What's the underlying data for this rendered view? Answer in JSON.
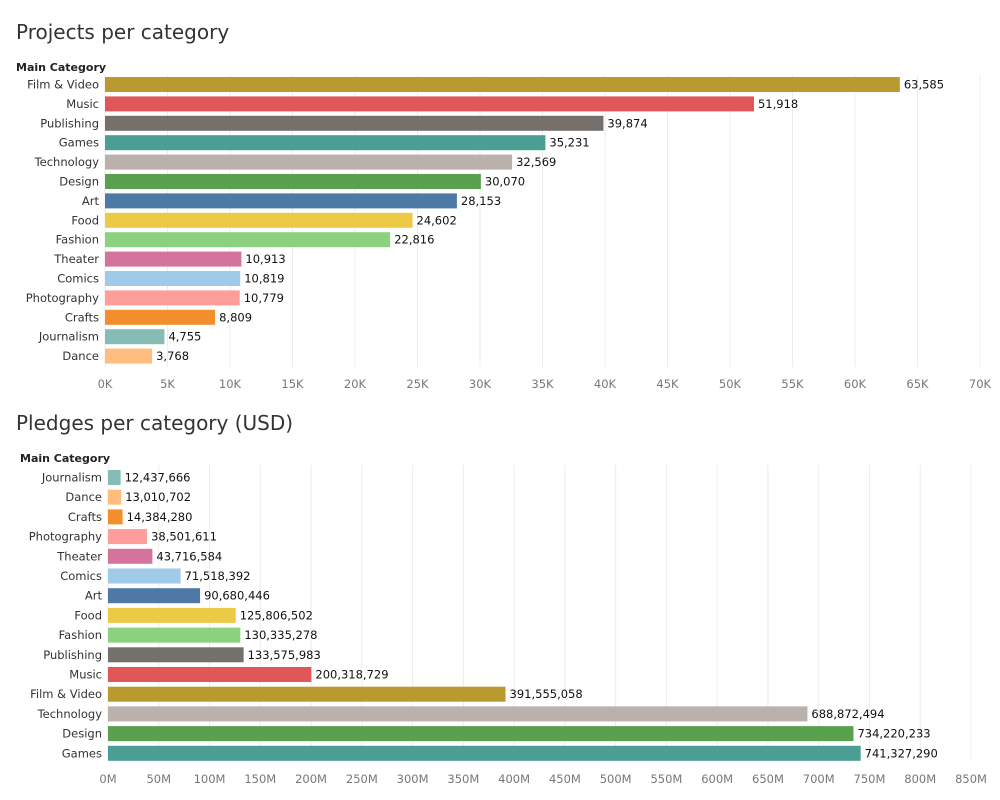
{
  "chart_data": [
    {
      "type": "bar",
      "orientation": "horizontal",
      "title": "Projects per category",
      "dimension_label": "Main Category",
      "categories": [
        "Film & Video",
        "Music",
        "Publishing",
        "Games",
        "Technology",
        "Design",
        "Art",
        "Food",
        "Fashion",
        "Theater",
        "Comics",
        "Photography",
        "Crafts",
        "Journalism",
        "Dance"
      ],
      "values": [
        63585,
        51918,
        39874,
        35231,
        32569,
        30070,
        28153,
        24602,
        22816,
        10913,
        10819,
        10779,
        8809,
        4755,
        3768
      ],
      "value_labels": [
        "63,585",
        "51,918",
        "39,874",
        "35,231",
        "32,569",
        "30,070",
        "28,153",
        "24,602",
        "22,816",
        "10,913",
        "10,819",
        "10,779",
        "8,809",
        "4,755",
        "3,768"
      ],
      "colors": [
        "#b89a2e",
        "#e05759",
        "#76706c",
        "#4a9e94",
        "#bab0ac",
        "#59a14f",
        "#4e79a7",
        "#edc948",
        "#8cd17d",
        "#d4739b",
        "#a0cbe8",
        "#ff9d9a",
        "#f28e2b",
        "#86bcb6",
        "#ffbe7d"
      ],
      "xlim": [
        0,
        70000
      ],
      "tick_values": [
        0,
        5000,
        10000,
        15000,
        20000,
        25000,
        30000,
        35000,
        40000,
        45000,
        50000,
        55000,
        60000,
        65000,
        70000
      ],
      "tick_labels": [
        "0K",
        "5K",
        "10K",
        "15K",
        "20K",
        "25K",
        "30K",
        "35K",
        "40K",
        "45K",
        "50K",
        "55K",
        "60K",
        "65K",
        "70K"
      ],
      "grid": true
    },
    {
      "type": "bar",
      "orientation": "horizontal",
      "title": "Pledges per category (USD)",
      "dimension_label": "Main Category",
      "categories": [
        "Journalism",
        "Dance",
        "Crafts",
        "Photography",
        "Theater",
        "Comics",
        "Art",
        "Food",
        "Fashion",
        "Publishing",
        "Music",
        "Film & Video",
        "Technology",
        "Design",
        "Games"
      ],
      "values": [
        12437666,
        13010702,
        14384280,
        38501611,
        43716584,
        71518392,
        90680446,
        125806502,
        130335278,
        133575983,
        200318729,
        391555058,
        688872494,
        734220233,
        741327290
      ],
      "value_labels": [
        "12,437,666",
        "13,010,702",
        "14,384,280",
        "38,501,611",
        "43,716,584",
        "71,518,392",
        "90,680,446",
        "125,806,502",
        "130,335,278",
        "133,575,983",
        "200,318,729",
        "391,555,058",
        "688,872,494",
        "734,220,233",
        "741,327,290"
      ],
      "colors": [
        "#86bcb6",
        "#ffbe7d",
        "#f28e2b",
        "#ff9d9a",
        "#d4739b",
        "#a0cbe8",
        "#4e79a7",
        "#edc948",
        "#8cd17d",
        "#76706c",
        "#e05759",
        "#b89a2e",
        "#bab0ac",
        "#59a14f",
        "#4a9e94"
      ],
      "xlim": [
        0,
        850000000
      ],
      "tick_values": [
        0,
        50000000,
        100000000,
        150000000,
        200000000,
        250000000,
        300000000,
        350000000,
        400000000,
        450000000,
        500000000,
        550000000,
        600000000,
        650000000,
        700000000,
        750000000,
        800000000,
        850000000
      ],
      "tick_labels": [
        "0M",
        "50M",
        "100M",
        "150M",
        "200M",
        "250M",
        "300M",
        "350M",
        "400M",
        "450M",
        "500M",
        "550M",
        "600M",
        "650M",
        "700M",
        "750M",
        "800M",
        "850M"
      ],
      "grid": true
    }
  ]
}
